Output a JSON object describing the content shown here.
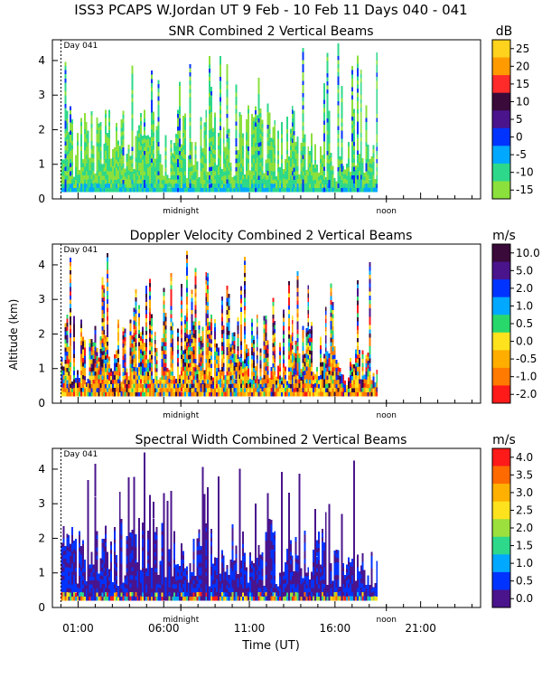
{
  "header": {
    "title": "ISS3 PCAPS W.Jordan UT   9 Feb - 10 Feb 11 Days 040 - 041"
  },
  "shared_axes": {
    "ylabel": "Altitude (km)",
    "xlabel": "Time (UT)",
    "ylim": [
      0,
      4.6
    ],
    "xlim_hours": [
      -0.5,
      24.5
    ],
    "y_ticks": [
      "0",
      "1",
      "2",
      "3",
      "4"
    ],
    "x_ticks": [
      {
        "hour": 1,
        "label": "01:00"
      },
      {
        "hour": 6,
        "label": "06:00"
      },
      {
        "hour": 11,
        "label": "11:00"
      },
      {
        "hour": 16,
        "label": "16:00"
      },
      {
        "hour": 21,
        "label": "21:00"
      }
    ],
    "day_marker": {
      "hour": 0,
      "label": "Day 041"
    },
    "time_markers": [
      {
        "hour": 7,
        "label": "midnight"
      },
      {
        "hour": 19,
        "label": "noon"
      }
    ],
    "data_end_hour": 18.5,
    "data_min_alt_km": 0.2
  },
  "chart_data": [
    {
      "type": "heatmap",
      "title": "SNR Combined 2 Vertical Beams",
      "unit": "dB",
      "colorbar_labels": [
        "25",
        "20",
        "15",
        "10",
        "5",
        "0",
        "-5",
        "-10",
        "-15"
      ],
      "colorbar_colors": [
        "#ffd21e",
        "#ff9a00",
        "#ff2a2a",
        "#3a0a3a",
        "#4a148c",
        "#0033ff",
        "#00a8ff",
        "#2ed88a",
        "#8be03c"
      ],
      "levels": [
        25,
        20,
        15,
        10,
        5,
        0,
        -5,
        -10,
        -15
      ],
      "seed": 11
    },
    {
      "type": "heatmap",
      "title": "Doppler Velocity Combined 2 Vertical Beams",
      "unit": "m/s",
      "colorbar_labels": [
        "10.0",
        "5.0",
        "2.0",
        "1.0",
        "0.5",
        "0.0",
        "-0.5",
        "-1.0",
        "-2.0"
      ],
      "colorbar_colors": [
        "#3a0a3a",
        "#4a148c",
        "#0033ff",
        "#00a8ff",
        "#29d86b",
        "#ffe21e",
        "#ffae00",
        "#ff7a00",
        "#ff1a1a"
      ],
      "levels": [
        10.0,
        5.0,
        2.0,
        1.0,
        0.5,
        0.0,
        -0.5,
        -1.0,
        -2.0
      ],
      "seed": 23
    },
    {
      "type": "heatmap",
      "title": "Spectral Width Combined 2 Vertical Beams",
      "unit": "m/s",
      "colorbar_labels": [
        "4.0",
        "3.5",
        "3.0",
        "2.5",
        "2.0",
        "1.5",
        "1.0",
        "0.5",
        "0.0"
      ],
      "colorbar_colors": [
        "#ff1a1a",
        "#ff6a00",
        "#ffb000",
        "#ffe21e",
        "#9be03c",
        "#2ed88a",
        "#00a8ff",
        "#0033ff",
        "#4a148c"
      ],
      "levels": [
        4.0,
        3.5,
        3.0,
        2.5,
        2.0,
        1.5,
        1.0,
        0.5,
        0.0
      ],
      "seed": 37
    }
  ]
}
